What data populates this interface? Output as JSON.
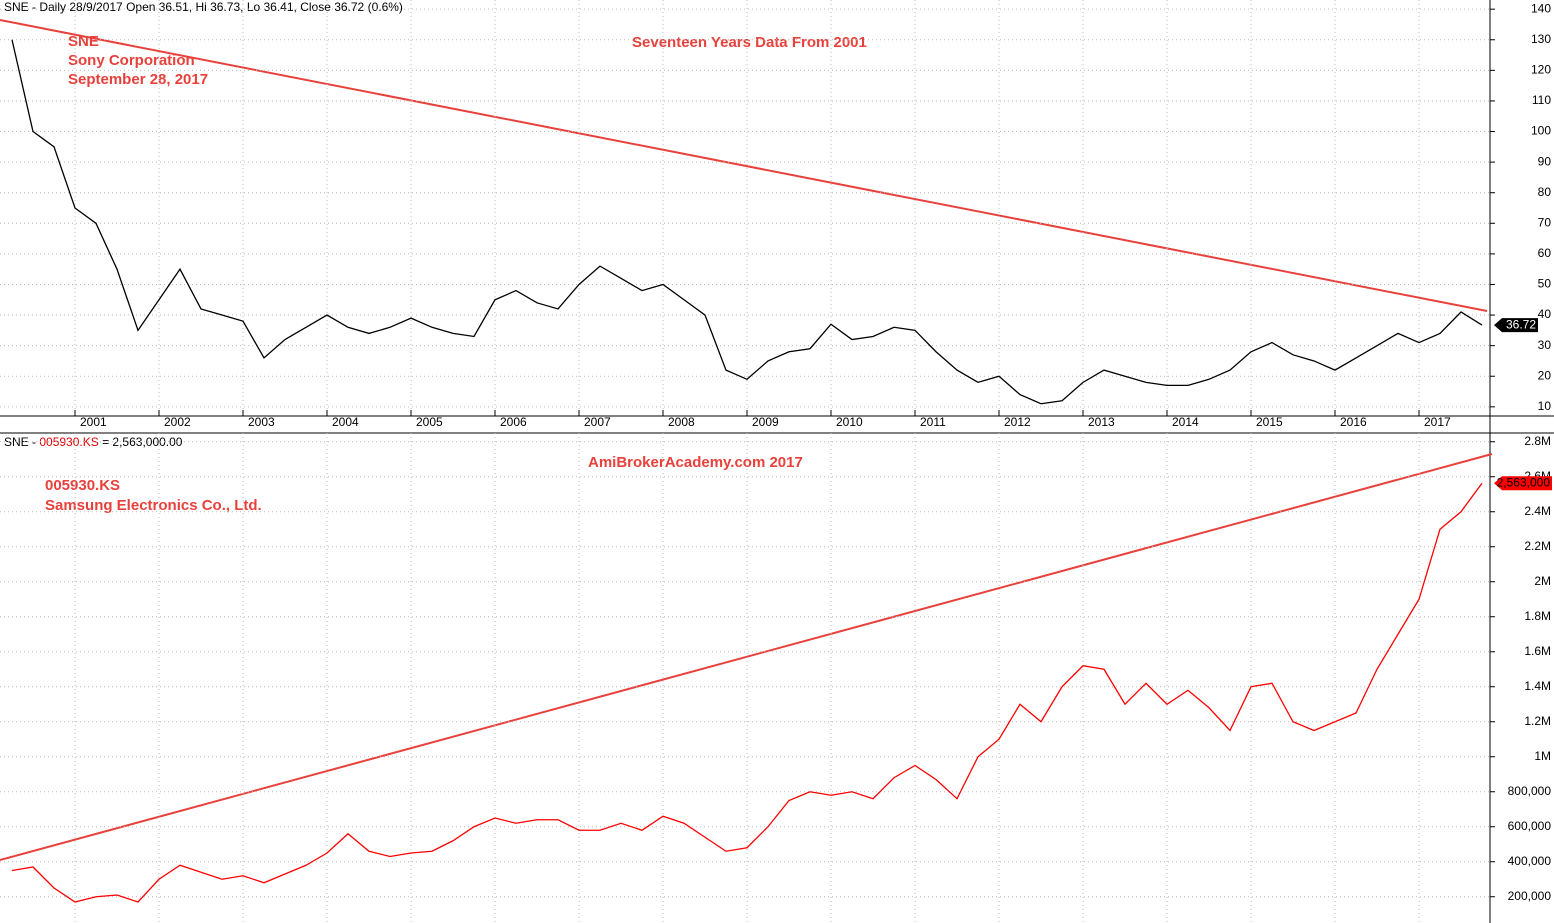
{
  "header": {
    "top": "SNE - Daily 28/9/2017 Open 36.51, Hi 36.73, Lo 36.41, Close 36.72 (0.6%)",
    "bottom_prefix": "SNE - ",
    "bottom_symbol": "005930.KS",
    "bottom_value": " = 2,563,000.00"
  },
  "chart_data": [
    {
      "type": "line",
      "color": "#000000",
      "annotations": [
        "SNE",
        "Sony Corporation",
        "September 28, 2017"
      ],
      "title": "Seventeen Years Data From 2001",
      "last_value_label": "36.72",
      "categories": [
        null,
        null,
        null,
        "2001",
        null,
        null,
        null,
        "2002",
        null,
        null,
        null,
        "2003",
        null,
        null,
        null,
        "2004",
        null,
        null,
        null,
        "2005",
        null,
        null,
        null,
        "2006",
        null,
        null,
        null,
        "2007",
        null,
        null,
        null,
        "2008",
        null,
        null,
        null,
        "2009",
        null,
        null,
        null,
        "2010",
        null,
        null,
        null,
        "2011",
        null,
        null,
        null,
        "2012",
        null,
        null,
        null,
        "2013",
        null,
        null,
        null,
        "2014",
        null,
        null,
        null,
        "2015",
        null,
        null,
        null,
        "2016",
        null,
        null,
        null,
        "2017",
        null,
        null,
        null
      ],
      "values": [
        130,
        100,
        95,
        75,
        70,
        55,
        35,
        45,
        55,
        42,
        40,
        38,
        26,
        32,
        36,
        40,
        36,
        34,
        36,
        39,
        36,
        34,
        33,
        45,
        48,
        44,
        42,
        50,
        56,
        52,
        48,
        50,
        45,
        40,
        22,
        19,
        25,
        28,
        29,
        37,
        32,
        33,
        36,
        35,
        28,
        22,
        18,
        20,
        14,
        11,
        12,
        18,
        22,
        20,
        18,
        17,
        17,
        19,
        22,
        28,
        31,
        27,
        25,
        22,
        26,
        30,
        34,
        31,
        34,
        41,
        36.72
      ],
      "ylim": [
        7,
        143
      ],
      "yticks": [
        10,
        20,
        30,
        40,
        50,
        60,
        70,
        80,
        90,
        100,
        110,
        120,
        130,
        140
      ],
      "grid": true
    },
    {
      "type": "line",
      "color": "#ff0000",
      "annotations": [
        "005930.KS",
        "Samsung Electronics Co., Ltd."
      ],
      "title": "AmiBrokerAcademy.com  2017",
      "last_value_label": "2,563,000",
      "values": [
        350000,
        370000,
        250000,
        170000,
        200000,
        210000,
        170000,
        300000,
        380000,
        340000,
        300000,
        320000,
        280000,
        330000,
        380000,
        450000,
        560000,
        460000,
        430000,
        450000,
        460000,
        520000,
        600000,
        650000,
        620000,
        640000,
        640000,
        580000,
        580000,
        620000,
        580000,
        660000,
        620000,
        540000,
        460000,
        480000,
        600000,
        750000,
        800000,
        780000,
        800000,
        760000,
        880000,
        950000,
        870000,
        760000,
        1000000,
        1100000,
        1300000,
        1200000,
        1400000,
        1520000,
        1500000,
        1300000,
        1420000,
        1300000,
        1380000,
        1280000,
        1150000,
        1400000,
        1420000,
        1200000,
        1150000,
        1200000,
        1250000,
        1500000,
        1700000,
        1900000,
        2300000,
        2400000,
        2563000
      ],
      "ylim": [
        50000,
        2850000
      ],
      "yticks": [
        {
          "value": 200000,
          "label": "200,000"
        },
        {
          "value": 400000,
          "label": "400,000"
        },
        {
          "value": 600000,
          "label": "600,000"
        },
        {
          "value": 800000,
          "label": "800,000"
        },
        {
          "value": 1000000,
          "label": "1M"
        },
        {
          "value": 1200000,
          "label": "1.2M"
        },
        {
          "value": 1400000,
          "label": "1.4M"
        },
        {
          "value": 1600000,
          "label": "1.6M"
        },
        {
          "value": 1800000,
          "label": "1.8M"
        },
        {
          "value": 2000000,
          "label": "2M"
        },
        {
          "value": 2200000,
          "label": "2.2M"
        },
        {
          "value": 2400000,
          "label": "2.4M"
        },
        {
          "value": 2600000,
          "label": "2.6M"
        },
        {
          "value": 2800000,
          "label": "2.8M"
        }
      ],
      "grid": true
    }
  ]
}
